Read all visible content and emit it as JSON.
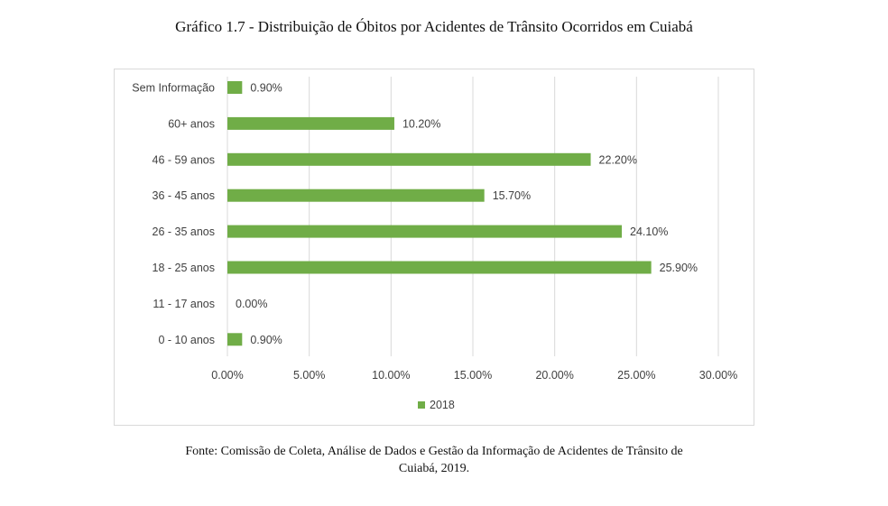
{
  "title": "Gráfico 1.7 - Distribuição de Óbitos por Acidentes de Trânsito Ocorridos em Cuiabá",
  "source_line1": "Fonte: Comissão de Coleta, Análise de Dados e Gestão da Informação de Acidentes de Trânsito de",
  "source_line2": "Cuiabá, 2019.",
  "colors": {
    "bar": "#70ad47",
    "grid": "#d9d9d9",
    "text": "#404040"
  },
  "chart_data": {
    "type": "bar",
    "orientation": "horizontal",
    "categories": [
      "Sem Informação",
      "60+ anos",
      "46 - 59 anos",
      "36 - 45 anos",
      "26 - 35 anos",
      "18 - 25 anos",
      "11 - 17 anos",
      "0 - 10 anos"
    ],
    "values": [
      0.9,
      10.2,
      22.2,
      15.7,
      24.1,
      25.9,
      0.0,
      0.9
    ],
    "value_labels": [
      "0.90%",
      "10.20%",
      "22.20%",
      "15.70%",
      "24.10%",
      "25.90%",
      "0.00%",
      "0.90%"
    ],
    "xlim": [
      0,
      30
    ],
    "xticks": [
      0,
      5,
      10,
      15,
      20,
      25,
      30
    ],
    "xtick_labels": [
      "0.00%",
      "5.00%",
      "10.00%",
      "15.00%",
      "20.00%",
      "25.00%",
      "30.00%"
    ],
    "series_name": "2018",
    "legend_position": "bottom",
    "grid": true
  }
}
